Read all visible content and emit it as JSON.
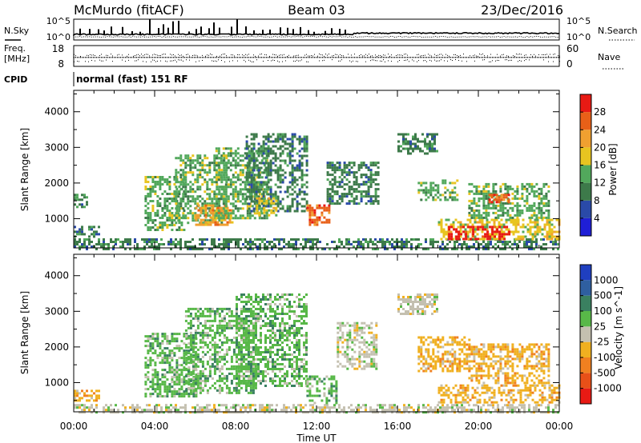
{
  "header": {
    "station": "McMurdo (fitACF)",
    "beam": "Beam 03",
    "date": "23/Dec/2016"
  },
  "noise_panel": {
    "left_label": "N.Sky",
    "right_label": "N.Search",
    "left_ticks": [
      "10^5",
      "10^0"
    ],
    "right_ticks": [
      "10^5",
      "10^0"
    ]
  },
  "freq_panel": {
    "left_label_1": "Freq.",
    "left_label_2": "[MHz]",
    "right_label": "Nave",
    "left_ticks": [
      "18",
      "8"
    ],
    "right_ticks": [
      "60",
      "0"
    ]
  },
  "cpid_panel": {
    "label": "CPID",
    "text": "normal (fast) 151 RF"
  },
  "axis": {
    "y_label": "Slant Range [km]",
    "x_label": "Time UT",
    "x_ticks": [
      "00:00",
      "04:00",
      "08:00",
      "12:00",
      "16:00",
      "20:00",
      "00:00"
    ],
    "y_ticks": [
      "1000",
      "2000",
      "3000",
      "4000"
    ]
  },
  "colorbars": {
    "power": {
      "title": "Power [dB]",
      "ticks": [
        "4",
        "8",
        "12",
        "16",
        "20",
        "24",
        "28"
      ],
      "colors": [
        "#1f1fd6",
        "#2a4aa8",
        "#3d7a4a",
        "#52a85c",
        "#e8c420",
        "#f0a030",
        "#e86018",
        "#e81a14"
      ]
    },
    "velocity": {
      "title": "Velocity [m s^-1]",
      "ticks": [
        "1000",
        "500",
        "100",
        "25",
        "-25",
        "-100",
        "-500",
        "-1000"
      ],
      "colors": [
        "#1f3fc0",
        "#2f5fa0",
        "#3a8060",
        "#58b848",
        "#c4c0b0",
        "#f0b020",
        "#f08020",
        "#e85018",
        "#e81a14"
      ]
    }
  },
  "chart_data": [
    {
      "type": "heatmap",
      "title": "Power [dB]",
      "xlabel": "Time UT",
      "ylabel": "Slant Range [km]",
      "xlim": [
        "00:00",
        "24:00"
      ],
      "ylim": [
        180,
        4600
      ],
      "clim": [
        0,
        32
      ],
      "regions": [
        {
          "t0": 0.0,
          "t1": 24.0,
          "r0": 180,
          "r1": 450,
          "value": 8
        },
        {
          "t0": 0.0,
          "t1": 1.2,
          "r0": 500,
          "r1": 800,
          "value": 10
        },
        {
          "t0": 0.0,
          "t1": 0.6,
          "r0": 1300,
          "r1": 1700,
          "value": 9
        },
        {
          "t0": 3.5,
          "t1": 5.5,
          "r0": 700,
          "r1": 2200,
          "value": 12
        },
        {
          "t0": 5.0,
          "t1": 7.5,
          "r0": 900,
          "r1": 2800,
          "value": 14
        },
        {
          "t0": 6.0,
          "t1": 7.8,
          "r0": 800,
          "r1": 1400,
          "value": 20
        },
        {
          "t0": 7.0,
          "t1": 9.5,
          "r0": 1000,
          "r1": 3000,
          "value": 12
        },
        {
          "t0": 8.5,
          "t1": 11.5,
          "r0": 1200,
          "r1": 3400,
          "value": 11
        },
        {
          "t0": 9.0,
          "t1": 10.0,
          "r0": 1100,
          "r1": 1600,
          "value": 18
        },
        {
          "t0": 11.5,
          "t1": 12.6,
          "r0": 850,
          "r1": 1400,
          "value": 26
        },
        {
          "t0": 12.5,
          "t1": 15.0,
          "r0": 1400,
          "r1": 2600,
          "value": 10
        },
        {
          "t0": 16.0,
          "t1": 18.0,
          "r0": 2800,
          "r1": 3400,
          "value": 9
        },
        {
          "t0": 17.0,
          "t1": 19.0,
          "r0": 1500,
          "r1": 2100,
          "value": 14
        },
        {
          "t0": 18.0,
          "t1": 24.0,
          "r0": 400,
          "r1": 1000,
          "value": 16
        },
        {
          "t0": 18.5,
          "t1": 21.5,
          "r0": 450,
          "r1": 800,
          "value": 29
        },
        {
          "t0": 19.5,
          "t1": 23.5,
          "r0": 1000,
          "r1": 2000,
          "value": 12
        },
        {
          "t0": 20.5,
          "t1": 21.5,
          "r0": 1450,
          "r1": 1700,
          "value": 25
        }
      ]
    },
    {
      "type": "heatmap",
      "title": "Velocity [m s^-1]",
      "xlabel": "Time UT",
      "ylabel": "Slant Range [km]",
      "xlim": [
        "00:00",
        "24:00"
      ],
      "ylim": [
        180,
        4600
      ],
      "clim": [
        -1000,
        1000
      ],
      "regions": [
        {
          "t0": 0.0,
          "t1": 24.0,
          "r0": 180,
          "r1": 400,
          "value": 0
        },
        {
          "t0": 0.0,
          "t1": 1.2,
          "r0": 500,
          "r1": 800,
          "value": -200
        },
        {
          "t0": 3.5,
          "t1": 6.0,
          "r0": 600,
          "r1": 2400,
          "value": 150
        },
        {
          "t0": 5.5,
          "t1": 9.0,
          "r0": 700,
          "r1": 3100,
          "value": 200
        },
        {
          "t0": 8.0,
          "t1": 11.5,
          "r0": 900,
          "r1": 3500,
          "value": 150
        },
        {
          "t0": 11.5,
          "t1": 13.0,
          "r0": 400,
          "r1": 1200,
          "value": 120
        },
        {
          "t0": 13.0,
          "t1": 15.0,
          "r0": 1400,
          "r1": 2700,
          "value": -50
        },
        {
          "t0": 16.0,
          "t1": 18.0,
          "r0": 2900,
          "r1": 3500,
          "value": 10
        },
        {
          "t0": 17.0,
          "t1": 19.5,
          "r0": 1300,
          "r1": 2300,
          "value": -250
        },
        {
          "t0": 18.0,
          "t1": 24.0,
          "r0": 450,
          "r1": 950,
          "value": -300
        },
        {
          "t0": 19.5,
          "t1": 23.5,
          "r0": 1000,
          "r1": 2100,
          "value": -200
        }
      ]
    }
  ]
}
